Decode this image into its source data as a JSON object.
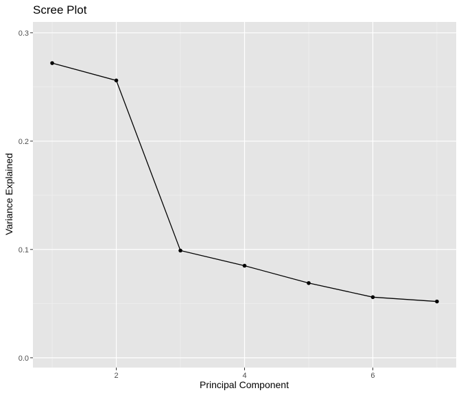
{
  "chart_data": {
    "type": "line",
    "title": "Scree Plot",
    "xlabel": "Principal Component",
    "ylabel": "Variance Explained",
    "x": [
      1,
      2,
      3,
      4,
      5,
      6,
      7
    ],
    "series": [
      {
        "values": [
          0.272,
          0.256,
          0.099,
          0.085,
          0.069,
          0.056,
          0.052
        ]
      }
    ],
    "xlim": [
      0.7,
      7.3
    ],
    "ylim": [
      -0.009,
      0.31
    ],
    "x_ticks": [
      2,
      4,
      6
    ],
    "x_tick_labels": [
      "2",
      "4",
      "6"
    ],
    "y_ticks": [
      0.0,
      0.1,
      0.2,
      0.3
    ],
    "y_tick_labels": [
      "0.0",
      "0.1",
      "0.2",
      "0.3"
    ],
    "grid": true,
    "legend": "none",
    "colors": {
      "panel_background": "#e5e5e5",
      "grid_major": "#ffffff",
      "grid_minor": "#f2f2f2",
      "line": "#000000",
      "point": "#000000",
      "tick": "#333333"
    }
  }
}
